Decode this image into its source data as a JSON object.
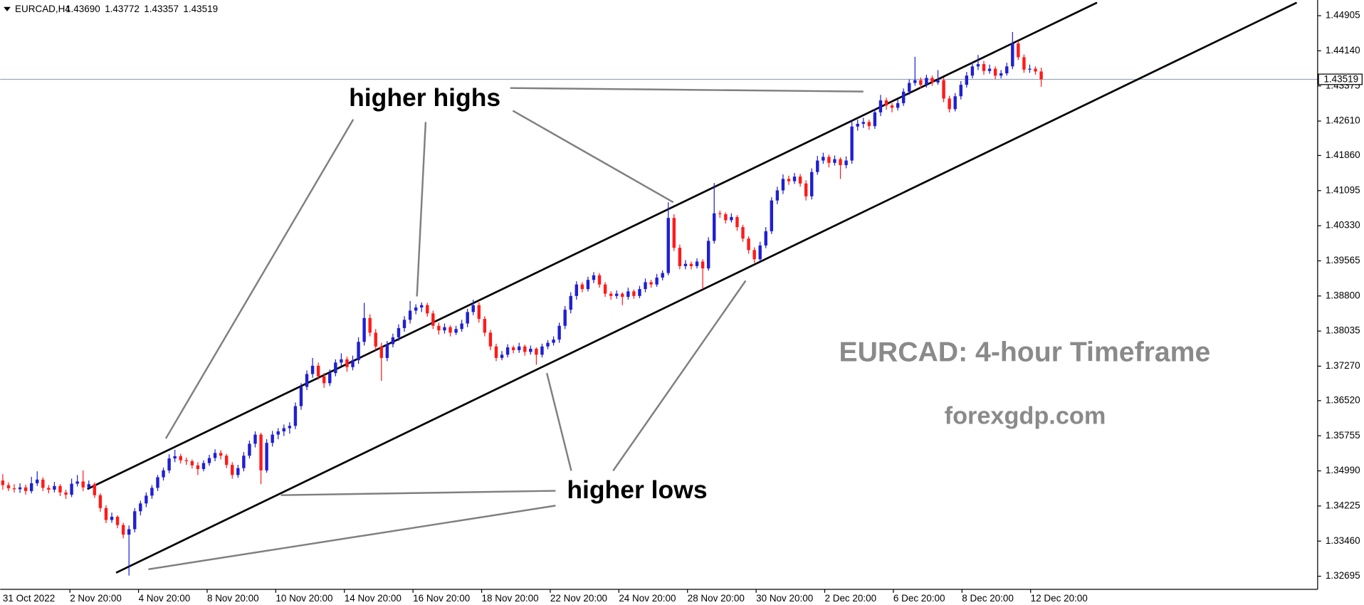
{
  "chart_data": {
    "type": "candlestick",
    "header": {
      "symbol": "EURCAD,H4",
      "ohlc_labels": [
        "1.43690",
        "1.43772",
        "1.43357",
        "1.43519"
      ]
    },
    "annotations": [
      "higher highs",
      "higher lows",
      "EURCAD: 4-hour Timeframe",
      "forexgdp.com"
    ],
    "up_color": "#1f1fd1",
    "down_color": "#ff1a1a",
    "current_price": 1.43519,
    "ylim": [
      1.32429,
      1.45247
    ],
    "yticks": [
      1.44905,
      {
        "value": 1.4414,
        "label": "1.44140"
      },
      1.43375,
      {
        "value": 1.4261,
        "label": "1.42610"
      },
      {
        "value": 1.4186,
        "label": "1.41860"
      },
      1.41095,
      {
        "value": 1.4033,
        "label": "1.40330"
      },
      1.39565,
      {
        "value": 1.388,
        "label": "1.38800"
      },
      1.38035,
      {
        "value": 1.3727,
        "label": "1.37270"
      },
      {
        "value": 1.3652,
        "label": "1.36520"
      },
      1.35755,
      {
        "value": 1.3499,
        "label": "1.34990"
      },
      1.34225,
      {
        "value": 1.3346,
        "label": "1.33460"
      },
      1.32695
    ],
    "xticks": [
      "31 Oct 2022",
      "2 Nov 20:00",
      "4 Nov 20:00",
      "8 Nov 20:00",
      "10 Nov 20:00",
      "14 Nov 20:00",
      "16 Nov 20:00",
      "18 Nov 20:00",
      "22 Nov 20:00",
      "24 Nov 20:00",
      "28 Nov 20:00",
      "30 Nov 20:00",
      "2 Dec 20:00",
      "6 Dec 20:00",
      "8 Dec 20:00",
      "12 Dec 20:00"
    ],
    "ohlc": [
      [
        1.3478,
        1.3492,
        1.3458,
        1.3468
      ],
      [
        1.3468,
        1.3474,
        1.3455,
        1.3461
      ],
      [
        1.3461,
        1.347,
        1.3452,
        1.3459
      ],
      [
        1.3459,
        1.3472,
        1.3451,
        1.3463
      ],
      [
        1.3463,
        1.3469,
        1.3447,
        1.3455
      ],
      [
        1.3455,
        1.3486,
        1.345,
        1.3472
      ],
      [
        1.3472,
        1.3498,
        1.3466,
        1.348
      ],
      [
        1.348,
        1.3485,
        1.3455,
        1.3462
      ],
      [
        1.3462,
        1.3468,
        1.345,
        1.3458
      ],
      [
        1.3458,
        1.3475,
        1.3452,
        1.3466
      ],
      [
        1.3466,
        1.347,
        1.3444,
        1.3452
      ],
      [
        1.3452,
        1.3458,
        1.3438,
        1.3447
      ],
      [
        1.3447,
        1.3482,
        1.3442,
        1.3471
      ],
      [
        1.3471,
        1.349,
        1.3465,
        1.3476
      ],
      [
        1.3476,
        1.35,
        1.3455,
        1.3463
      ],
      [
        1.3463,
        1.3478,
        1.3458,
        1.347
      ],
      [
        1.347,
        1.3474,
        1.344,
        1.3446
      ],
      [
        1.3446,
        1.345,
        1.341,
        1.3418
      ],
      [
        1.3418,
        1.3424,
        1.3385,
        1.3392
      ],
      [
        1.3392,
        1.3408,
        1.3386,
        1.3399
      ],
      [
        1.3399,
        1.3402,
        1.3374,
        1.3381
      ],
      [
        1.3381,
        1.3386,
        1.3352,
        1.336
      ],
      [
        1.336,
        1.338,
        1.3271,
        1.3372
      ],
      [
        1.3372,
        1.3418,
        1.3365,
        1.3411
      ],
      [
        1.3411,
        1.3434,
        1.3402,
        1.3428
      ],
      [
        1.3428,
        1.3452,
        1.342,
        1.3445
      ],
      [
        1.3445,
        1.3468,
        1.3438,
        1.3462
      ],
      [
        1.3462,
        1.349,
        1.3455,
        1.3485
      ],
      [
        1.3485,
        1.3506,
        1.3478,
        1.35
      ],
      [
        1.35,
        1.3535,
        1.3494,
        1.3526
      ],
      [
        1.3526,
        1.3545,
        1.3518,
        1.3531
      ],
      [
        1.3531,
        1.3536,
        1.3515,
        1.3522
      ],
      [
        1.3522,
        1.3528,
        1.3512,
        1.352
      ],
      [
        1.352,
        1.3524,
        1.3504,
        1.3511
      ],
      [
        1.3511,
        1.3518,
        1.349,
        1.3503
      ],
      [
        1.3503,
        1.3522,
        1.3498,
        1.3516
      ],
      [
        1.3516,
        1.3534,
        1.351,
        1.3527
      ],
      [
        1.3527,
        1.3546,
        1.352,
        1.3538
      ],
      [
        1.3538,
        1.3544,
        1.3524,
        1.3532
      ],
      [
        1.3532,
        1.3536,
        1.3505,
        1.3512
      ],
      [
        1.3512,
        1.3518,
        1.3482,
        1.349
      ],
      [
        1.349,
        1.3512,
        1.3484,
        1.3505
      ],
      [
        1.3505,
        1.354,
        1.3498,
        1.3532
      ],
      [
        1.3532,
        1.3565,
        1.3526,
        1.3558
      ],
      [
        1.3558,
        1.3585,
        1.355,
        1.3578
      ],
      [
        1.3578,
        1.3582,
        1.347,
        1.35
      ],
      [
        1.35,
        1.3568,
        1.3495,
        1.356
      ],
      [
        1.356,
        1.3586,
        1.3552,
        1.3578
      ],
      [
        1.3578,
        1.3592,
        1.3568,
        1.3585
      ],
      [
        1.3585,
        1.36,
        1.3575,
        1.3592
      ],
      [
        1.3592,
        1.3605,
        1.358,
        1.3597
      ],
      [
        1.3597,
        1.3648,
        1.359,
        1.364
      ],
      [
        1.364,
        1.369,
        1.3632,
        1.3682
      ],
      [
        1.3682,
        1.3718,
        1.3675,
        1.371
      ],
      [
        1.371,
        1.3745,
        1.3702,
        1.3728
      ],
      [
        1.3728,
        1.3735,
        1.3698,
        1.3705
      ],
      [
        1.3705,
        1.3712,
        1.368,
        1.369
      ],
      [
        1.369,
        1.372,
        1.3684,
        1.3712
      ],
      [
        1.3712,
        1.3742,
        1.3705,
        1.3735
      ],
      [
        1.3735,
        1.3755,
        1.3728,
        1.3742
      ],
      [
        1.3742,
        1.3748,
        1.3715,
        1.3725
      ],
      [
        1.3725,
        1.375,
        1.3718,
        1.374
      ],
      [
        1.374,
        1.379,
        1.3732,
        1.378
      ],
      [
        1.378,
        1.3865,
        1.3772,
        1.3832
      ],
      [
        1.3832,
        1.384,
        1.3792,
        1.38
      ],
      [
        1.38,
        1.3808,
        1.3762,
        1.377
      ],
      [
        1.377,
        1.3778,
        1.3695,
        1.3745
      ],
      [
        1.3745,
        1.3782,
        1.3738,
        1.3775
      ],
      [
        1.3775,
        1.3798,
        1.3768,
        1.379
      ],
      [
        1.379,
        1.3818,
        1.3782,
        1.381
      ],
      [
        1.381,
        1.3836,
        1.3802,
        1.3828
      ],
      [
        1.3828,
        1.3869,
        1.382,
        1.3848
      ],
      [
        1.3848,
        1.3862,
        1.384,
        1.3855
      ],
      [
        1.3855,
        1.3866,
        1.3845,
        1.386
      ],
      [
        1.386,
        1.3865,
        1.3835,
        1.3842
      ],
      [
        1.3842,
        1.3848,
        1.3808,
        1.3815
      ],
      [
        1.3815,
        1.3822,
        1.3796,
        1.3805
      ],
      [
        1.3805,
        1.382,
        1.3798,
        1.3812
      ],
      [
        1.3812,
        1.3816,
        1.3792,
        1.38
      ],
      [
        1.38,
        1.3815,
        1.3795,
        1.3808
      ],
      [
        1.3808,
        1.3828,
        1.3802,
        1.382
      ],
      [
        1.382,
        1.3852,
        1.3812,
        1.3845
      ],
      [
        1.3845,
        1.3872,
        1.3838,
        1.386
      ],
      [
        1.386,
        1.3866,
        1.3822,
        1.383
      ],
      [
        1.383,
        1.3836,
        1.3792,
        1.38
      ],
      [
        1.38,
        1.3806,
        1.3762,
        1.377
      ],
      [
        1.377,
        1.3776,
        1.3738,
        1.3745
      ],
      [
        1.3745,
        1.376,
        1.374,
        1.3752
      ],
      [
        1.3752,
        1.3775,
        1.3746,
        1.3768
      ],
      [
        1.3768,
        1.3772,
        1.3755,
        1.3762
      ],
      [
        1.3762,
        1.3778,
        1.3756,
        1.377
      ],
      [
        1.377,
        1.3774,
        1.375,
        1.3758
      ],
      [
        1.3758,
        1.3772,
        1.3752,
        1.3765
      ],
      [
        1.3765,
        1.3768,
        1.373,
        1.3752
      ],
      [
        1.3752,
        1.3776,
        1.3746,
        1.377
      ],
      [
        1.377,
        1.3784,
        1.3764,
        1.3778
      ],
      [
        1.3778,
        1.3792,
        1.3772,
        1.3785
      ],
      [
        1.3785,
        1.3822,
        1.3778,
        1.3815
      ],
      [
        1.3815,
        1.3858,
        1.3808,
        1.385
      ],
      [
        1.385,
        1.3888,
        1.3842,
        1.388
      ],
      [
        1.388,
        1.3912,
        1.3872,
        1.3905
      ],
      [
        1.3905,
        1.391,
        1.3888,
        1.3895
      ],
      [
        1.3895,
        1.3922,
        1.389,
        1.3915
      ],
      [
        1.3915,
        1.3932,
        1.3908,
        1.3925
      ],
      [
        1.3925,
        1.393,
        1.3898,
        1.3905
      ],
      [
        1.3905,
        1.391,
        1.3878,
        1.3885
      ],
      [
        1.3885,
        1.389,
        1.3872,
        1.388
      ],
      [
        1.388,
        1.3892,
        1.3874,
        1.3885
      ],
      [
        1.3885,
        1.3888,
        1.386,
        1.3878
      ],
      [
        1.3878,
        1.3898,
        1.3872,
        1.389
      ],
      [
        1.389,
        1.3894,
        1.3874,
        1.388
      ],
      [
        1.388,
        1.3902,
        1.3875,
        1.3895
      ],
      [
        1.3895,
        1.3918,
        1.3888,
        1.391
      ],
      [
        1.391,
        1.3915,
        1.3898,
        1.3905
      ],
      [
        1.3905,
        1.3928,
        1.39,
        1.392
      ],
      [
        1.392,
        1.3936,
        1.3914,
        1.393
      ],
      [
        1.393,
        1.4084,
        1.3925,
        1.405
      ],
      [
        1.405,
        1.4058,
        1.3978,
        1.3985
      ],
      [
        1.3985,
        1.3992,
        1.3938,
        1.3945
      ],
      [
        1.3945,
        1.3958,
        1.3938,
        1.395
      ],
      [
        1.395,
        1.3955,
        1.3938,
        1.3945
      ],
      [
        1.3945,
        1.3962,
        1.394,
        1.3955
      ],
      [
        1.3955,
        1.396,
        1.3895,
        1.394
      ],
      [
        1.394,
        1.4008,
        1.3935,
        1.4
      ],
      [
        1.4,
        1.4126,
        1.3994,
        1.406
      ],
      [
        1.406,
        1.4066,
        1.405,
        1.4058
      ],
      [
        1.4058,
        1.4062,
        1.4038,
        1.4045
      ],
      [
        1.4045,
        1.406,
        1.404,
        1.4052
      ],
      [
        1.4052,
        1.4056,
        1.4022,
        1.403
      ],
      [
        1.403,
        1.4035,
        1.3998,
        1.4005
      ],
      [
        1.4005,
        1.401,
        1.3972,
        1.398
      ],
      [
        1.398,
        1.3986,
        1.3952,
        1.396
      ],
      [
        1.396,
        1.3998,
        1.3955,
        1.399
      ],
      [
        1.399,
        1.403,
        1.3984,
        1.4021
      ],
      [
        1.4021,
        1.4095,
        1.4015,
        1.4088
      ],
      [
        1.4088,
        1.4118,
        1.408,
        1.411
      ],
      [
        1.411,
        1.4145,
        1.4102,
        1.4135
      ],
      [
        1.4135,
        1.4142,
        1.4122,
        1.413
      ],
      [
        1.413,
        1.4148,
        1.4124,
        1.414
      ],
      [
        1.414,
        1.4146,
        1.4118,
        1.4125
      ],
      [
        1.4125,
        1.4132,
        1.4088,
        1.4097
      ],
      [
        1.4097,
        1.4158,
        1.409,
        1.415
      ],
      [
        1.415,
        1.4185,
        1.4144,
        1.4175
      ],
      [
        1.4175,
        1.4192,
        1.4168,
        1.4183
      ],
      [
        1.4183,
        1.4188,
        1.416,
        1.417
      ],
      [
        1.417,
        1.4186,
        1.4164,
        1.4178
      ],
      [
        1.4178,
        1.4182,
        1.4135,
        1.4165
      ],
      [
        1.4165,
        1.4184,
        1.4158,
        1.4175
      ],
      [
        1.4175,
        1.4262,
        1.4168,
        1.4249
      ],
      [
        1.4249,
        1.4264,
        1.424,
        1.4255
      ],
      [
        1.4255,
        1.4268,
        1.4246,
        1.4259
      ],
      [
        1.4259,
        1.4264,
        1.4242,
        1.425
      ],
      [
        1.425,
        1.4288,
        1.4244,
        1.428
      ],
      [
        1.428,
        1.4318,
        1.4272,
        1.4306
      ],
      [
        1.4306,
        1.4312,
        1.4286,
        1.4295
      ],
      [
        1.4295,
        1.43,
        1.428,
        1.429
      ],
      [
        1.429,
        1.4308,
        1.4284,
        1.43
      ],
      [
        1.43,
        1.4332,
        1.4294,
        1.4325
      ],
      [
        1.4325,
        1.4352,
        1.4318,
        1.4344
      ],
      [
        1.4344,
        1.4401,
        1.4338,
        1.435
      ],
      [
        1.435,
        1.4356,
        1.4332,
        1.434
      ],
      [
        1.434,
        1.4362,
        1.4334,
        1.4355
      ],
      [
        1.4355,
        1.436,
        1.4338,
        1.4345
      ],
      [
        1.4345,
        1.4372,
        1.434,
        1.435
      ],
      [
        1.435,
        1.4356,
        1.4302,
        1.431
      ],
      [
        1.431,
        1.4316,
        1.428,
        1.4287
      ],
      [
        1.4287,
        1.4322,
        1.4282,
        1.4315
      ],
      [
        1.4315,
        1.4348,
        1.4308,
        1.434
      ],
      [
        1.434,
        1.4368,
        1.4334,
        1.436
      ],
      [
        1.436,
        1.439,
        1.4354,
        1.438
      ],
      [
        1.438,
        1.4405,
        1.4372,
        1.4385
      ],
      [
        1.4385,
        1.4392,
        1.4362,
        1.437
      ],
      [
        1.437,
        1.4384,
        1.4364,
        1.4375
      ],
      [
        1.4375,
        1.438,
        1.4352,
        1.436
      ],
      [
        1.436,
        1.4372,
        1.4354,
        1.4365
      ],
      [
        1.4365,
        1.4388,
        1.436,
        1.438
      ],
      [
        1.438,
        1.4455,
        1.4374,
        1.443
      ],
      [
        1.443,
        1.4436,
        1.4394,
        1.44
      ],
      [
        1.44,
        1.4406,
        1.4366,
        1.4373
      ],
      [
        1.4373,
        1.4384,
        1.4366,
        1.4375
      ],
      [
        1.4375,
        1.438,
        1.4362,
        1.4369
      ],
      [
        1.4369,
        1.43772,
        1.43357,
        1.43519
      ]
    ]
  }
}
